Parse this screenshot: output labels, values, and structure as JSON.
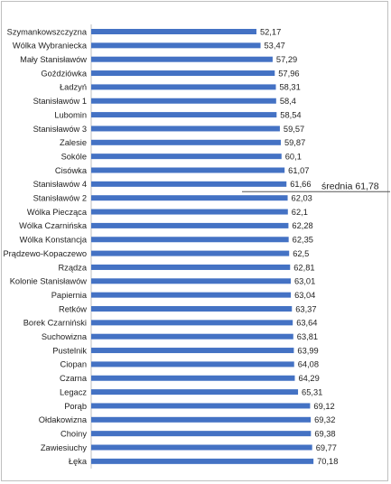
{
  "chart_data": {
    "type": "bar",
    "orientation": "horizontal",
    "categories": [
      "Szymankowszczyzna",
      "Wólka Wybraniecka",
      "Mały Stanisławów",
      "Goździówka",
      "Ładzyń",
      "Stanisławów 1",
      "Lubomin",
      "Stanisławów 3",
      "Zalesie",
      "Sokóle",
      "Cisówka",
      "Stanisławów 4",
      "Stanisławów 2",
      "Wólka Piecząca",
      "Wólka Czarnińska",
      "Wólka Konstancja",
      "Prądzewo-Kopaczewo",
      "Rządza",
      "Kolonie Stanisławów",
      "Papiernia",
      "Retków",
      "Borek Czarniński",
      "Suchowizna",
      "Pustelnik",
      "Ciopan",
      "Czarna",
      "Legacz",
      "Porąb",
      "Ołdakowizna",
      "Choiny",
      "Zawiesiuchy",
      "Łęka"
    ],
    "values": [
      52.17,
      53.47,
      57.29,
      57.96,
      58.31,
      58.4,
      58.54,
      59.57,
      59.87,
      60.1,
      61.07,
      61.66,
      62.03,
      62.1,
      62.28,
      62.35,
      62.5,
      62.81,
      63.01,
      63.04,
      63.37,
      63.64,
      63.81,
      63.99,
      64.08,
      64.29,
      65.31,
      69.12,
      69.32,
      69.38,
      69.77,
      70.18
    ],
    "value_labels": [
      "52,17",
      "53,47",
      "57,29",
      "57,96",
      "58,31",
      "58,4",
      "58,54",
      "59,57",
      "59,87",
      "60,1",
      "61,07",
      "61,66",
      "62,03",
      "62,1",
      "62,28",
      "62,35",
      "62,5",
      "62,81",
      "63,01",
      "63,04",
      "63,37",
      "63,64",
      "63,81",
      "63,99",
      "64,08",
      "64,29",
      "65,31",
      "69,12",
      "69,32",
      "69,38",
      "69,77",
      "70,18"
    ],
    "average": {
      "value": 61.78,
      "label": "średnia 61,78"
    },
    "bar_color": "#4472c4",
    "title": "",
    "xlabel": "",
    "ylabel": "",
    "grid": false
  }
}
